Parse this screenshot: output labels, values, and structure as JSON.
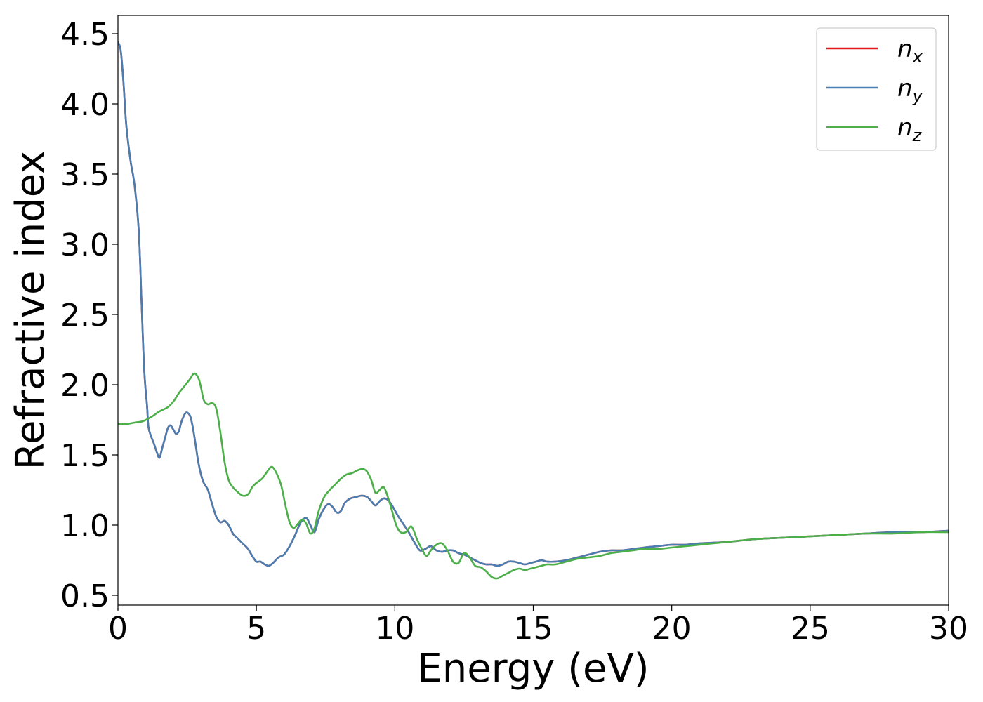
{
  "chart_data": {
    "type": "line",
    "xlabel": "Energy (eV)",
    "ylabel": "Refractive index",
    "xlim": [
      0,
      30
    ],
    "ylim": [
      0.43,
      4.63
    ],
    "xticks": [
      0,
      5,
      10,
      15,
      20,
      25,
      30
    ],
    "xtick_labels": [
      "0",
      "5",
      "10",
      "15",
      "20",
      "25",
      "30"
    ],
    "yticks": [
      0.5,
      1.0,
      1.5,
      2.0,
      2.5,
      3.0,
      3.5,
      4.0,
      4.5
    ],
    "ytick_labels": [
      "0.5",
      "1.0",
      "1.5",
      "2.0",
      "2.5",
      "3.0",
      "3.5",
      "4.0",
      "4.5"
    ],
    "grid": false,
    "legend_position": "top-right",
    "series": [
      {
        "name": "n_x",
        "legend_base": "n",
        "legend_sub": "x",
        "color": "#e41a1c",
        "x": [
          0,
          0.1,
          0.2,
          0.3,
          0.45,
          0.6,
          0.75,
          0.85,
          0.95,
          1.05,
          1.1,
          1.2,
          1.3,
          1.4,
          1.5,
          1.6,
          1.7,
          1.8,
          1.9,
          2.0,
          2.1,
          2.2,
          2.3,
          2.45,
          2.6,
          2.7,
          2.8,
          2.9,
          3.0,
          3.1,
          3.25,
          3.4,
          3.55,
          3.7,
          3.85,
          4.0,
          4.15,
          4.3,
          4.5,
          4.7,
          4.85,
          5.0,
          5.15,
          5.3,
          5.45,
          5.6,
          5.8,
          6.0,
          6.2,
          6.4,
          6.6,
          6.8,
          6.95,
          7.1,
          7.25,
          7.45,
          7.6,
          7.75,
          7.9,
          8.05,
          8.2,
          8.4,
          8.6,
          8.8,
          9.0,
          9.15,
          9.3,
          9.45,
          9.6,
          9.75,
          9.9,
          10.1,
          10.3,
          10.5,
          10.7,
          10.9,
          11.1,
          11.3,
          11.5,
          11.7,
          11.9,
          12.1,
          12.3,
          12.5,
          12.7,
          12.9,
          13.1,
          13.3,
          13.5,
          13.7,
          13.9,
          14.1,
          14.3,
          14.5,
          14.7,
          14.9,
          15.1,
          15.3,
          15.5,
          15.8,
          16.2,
          16.6,
          17.0,
          17.4,
          17.8,
          18.2,
          18.6,
          19.0,
          19.5,
          20.0,
          20.5,
          21.0,
          22.0,
          23.0,
          24.0,
          25.0,
          26.0,
          27.0,
          28.0,
          29.0,
          30.0
        ],
        "values": [
          4.44,
          4.38,
          4.15,
          3.85,
          3.6,
          3.42,
          3.1,
          2.6,
          2.1,
          1.85,
          1.7,
          1.63,
          1.58,
          1.52,
          1.48,
          1.55,
          1.62,
          1.69,
          1.71,
          1.68,
          1.65,
          1.67,
          1.74,
          1.8,
          1.78,
          1.7,
          1.58,
          1.45,
          1.36,
          1.3,
          1.25,
          1.15,
          1.06,
          1.02,
          1.03,
          1.0,
          0.94,
          0.91,
          0.87,
          0.83,
          0.78,
          0.74,
          0.74,
          0.72,
          0.71,
          0.73,
          0.77,
          0.79,
          0.85,
          0.93,
          1.02,
          1.05,
          1.0,
          0.95,
          1.04,
          1.12,
          1.15,
          1.13,
          1.09,
          1.1,
          1.16,
          1.19,
          1.2,
          1.21,
          1.2,
          1.17,
          1.14,
          1.17,
          1.19,
          1.18,
          1.14,
          1.07,
          1.01,
          0.95,
          0.88,
          0.82,
          0.83,
          0.85,
          0.82,
          0.81,
          0.82,
          0.82,
          0.8,
          0.79,
          0.77,
          0.75,
          0.73,
          0.72,
          0.72,
          0.71,
          0.72,
          0.74,
          0.74,
          0.73,
          0.72,
          0.73,
          0.74,
          0.75,
          0.74,
          0.74,
          0.75,
          0.77,
          0.79,
          0.81,
          0.82,
          0.82,
          0.83,
          0.84,
          0.85,
          0.86,
          0.86,
          0.87,
          0.88,
          0.9,
          0.91,
          0.92,
          0.93,
          0.94,
          0.95,
          0.95,
          0.96
        ]
      },
      {
        "name": "n_y",
        "legend_base": "n",
        "legend_sub": "y",
        "color": "#4a7db0",
        "x": [
          0,
          0.1,
          0.2,
          0.3,
          0.45,
          0.6,
          0.75,
          0.85,
          0.95,
          1.05,
          1.1,
          1.2,
          1.3,
          1.4,
          1.5,
          1.6,
          1.7,
          1.8,
          1.9,
          2.0,
          2.1,
          2.2,
          2.3,
          2.45,
          2.6,
          2.7,
          2.8,
          2.9,
          3.0,
          3.1,
          3.25,
          3.4,
          3.55,
          3.7,
          3.85,
          4.0,
          4.15,
          4.3,
          4.5,
          4.7,
          4.85,
          5.0,
          5.15,
          5.3,
          5.45,
          5.6,
          5.8,
          6.0,
          6.2,
          6.4,
          6.6,
          6.8,
          6.95,
          7.1,
          7.25,
          7.45,
          7.6,
          7.75,
          7.9,
          8.05,
          8.2,
          8.4,
          8.6,
          8.8,
          9.0,
          9.15,
          9.3,
          9.45,
          9.6,
          9.75,
          9.9,
          10.1,
          10.3,
          10.5,
          10.7,
          10.9,
          11.1,
          11.3,
          11.5,
          11.7,
          11.9,
          12.1,
          12.3,
          12.5,
          12.7,
          12.9,
          13.1,
          13.3,
          13.5,
          13.7,
          13.9,
          14.1,
          14.3,
          14.5,
          14.7,
          14.9,
          15.1,
          15.3,
          15.5,
          15.8,
          16.2,
          16.6,
          17.0,
          17.4,
          17.8,
          18.2,
          18.6,
          19.0,
          19.5,
          20.0,
          20.5,
          21.0,
          22.0,
          23.0,
          24.0,
          25.0,
          26.0,
          27.0,
          28.0,
          29.0,
          30.0
        ],
        "values": [
          4.44,
          4.38,
          4.15,
          3.85,
          3.6,
          3.42,
          3.1,
          2.6,
          2.1,
          1.85,
          1.7,
          1.63,
          1.58,
          1.52,
          1.48,
          1.55,
          1.62,
          1.69,
          1.71,
          1.68,
          1.65,
          1.67,
          1.74,
          1.8,
          1.78,
          1.7,
          1.58,
          1.45,
          1.36,
          1.3,
          1.25,
          1.15,
          1.06,
          1.02,
          1.03,
          1.0,
          0.94,
          0.91,
          0.87,
          0.83,
          0.78,
          0.74,
          0.74,
          0.72,
          0.71,
          0.73,
          0.77,
          0.79,
          0.85,
          0.93,
          1.02,
          1.05,
          1.0,
          0.95,
          1.04,
          1.12,
          1.15,
          1.13,
          1.09,
          1.1,
          1.16,
          1.19,
          1.2,
          1.21,
          1.2,
          1.17,
          1.14,
          1.17,
          1.19,
          1.18,
          1.14,
          1.07,
          1.01,
          0.95,
          0.88,
          0.82,
          0.83,
          0.85,
          0.82,
          0.81,
          0.82,
          0.82,
          0.8,
          0.79,
          0.77,
          0.75,
          0.73,
          0.72,
          0.72,
          0.71,
          0.72,
          0.74,
          0.74,
          0.73,
          0.72,
          0.73,
          0.74,
          0.75,
          0.74,
          0.74,
          0.75,
          0.77,
          0.79,
          0.81,
          0.82,
          0.82,
          0.83,
          0.84,
          0.85,
          0.86,
          0.86,
          0.87,
          0.88,
          0.9,
          0.91,
          0.92,
          0.93,
          0.94,
          0.95,
          0.95,
          0.96
        ]
      },
      {
        "name": "n_z",
        "legend_base": "n",
        "legend_sub": "z",
        "color": "#4daf4a",
        "x": [
          0,
          0.3,
          0.6,
          0.9,
          1.2,
          1.5,
          1.8,
          2.0,
          2.2,
          2.4,
          2.6,
          2.75,
          2.9,
          3.0,
          3.1,
          3.25,
          3.4,
          3.55,
          3.7,
          3.85,
          4.0,
          4.15,
          4.3,
          4.5,
          4.7,
          4.85,
          5.0,
          5.2,
          5.35,
          5.5,
          5.6,
          5.75,
          5.9,
          6.05,
          6.2,
          6.35,
          6.5,
          6.65,
          6.8,
          6.95,
          7.1,
          7.25,
          7.45,
          7.65,
          7.85,
          8.05,
          8.25,
          8.45,
          8.65,
          8.85,
          9.0,
          9.15,
          9.3,
          9.45,
          9.6,
          9.75,
          9.9,
          10.05,
          10.2,
          10.4,
          10.6,
          10.8,
          11.0,
          11.15,
          11.3,
          11.5,
          11.7,
          11.9,
          12.1,
          12.3,
          12.5,
          12.7,
          12.9,
          13.1,
          13.3,
          13.5,
          13.7,
          13.9,
          14.1,
          14.3,
          14.5,
          14.7,
          14.9,
          15.1,
          15.3,
          15.5,
          15.8,
          16.2,
          16.6,
          17.0,
          17.4,
          17.8,
          18.2,
          18.6,
          19.0,
          19.5,
          20.0,
          20.5,
          21.0,
          22.0,
          23.0,
          24.0,
          25.0,
          26.0,
          27.0,
          28.0,
          29.0,
          30.0
        ],
        "values": [
          1.72,
          1.72,
          1.73,
          1.74,
          1.77,
          1.81,
          1.84,
          1.88,
          1.94,
          1.99,
          2.04,
          2.08,
          2.05,
          1.98,
          1.89,
          1.86,
          1.87,
          1.83,
          1.66,
          1.45,
          1.32,
          1.27,
          1.24,
          1.21,
          1.22,
          1.27,
          1.3,
          1.33,
          1.37,
          1.41,
          1.41,
          1.36,
          1.28,
          1.14,
          1.02,
          0.98,
          1.01,
          1.04,
          1.01,
          0.94,
          0.98,
          1.1,
          1.2,
          1.25,
          1.29,
          1.33,
          1.36,
          1.37,
          1.39,
          1.4,
          1.38,
          1.32,
          1.23,
          1.25,
          1.27,
          1.2,
          1.1,
          1.0,
          0.95,
          0.95,
          0.99,
          0.9,
          0.82,
          0.78,
          0.82,
          0.86,
          0.87,
          0.82,
          0.74,
          0.73,
          0.8,
          0.77,
          0.71,
          0.7,
          0.67,
          0.63,
          0.62,
          0.64,
          0.66,
          0.68,
          0.69,
          0.68,
          0.69,
          0.7,
          0.71,
          0.72,
          0.72,
          0.74,
          0.76,
          0.77,
          0.78,
          0.8,
          0.81,
          0.82,
          0.83,
          0.83,
          0.84,
          0.85,
          0.86,
          0.88,
          0.9,
          0.91,
          0.92,
          0.93,
          0.94,
          0.94,
          0.95,
          0.95
        ]
      }
    ]
  }
}
